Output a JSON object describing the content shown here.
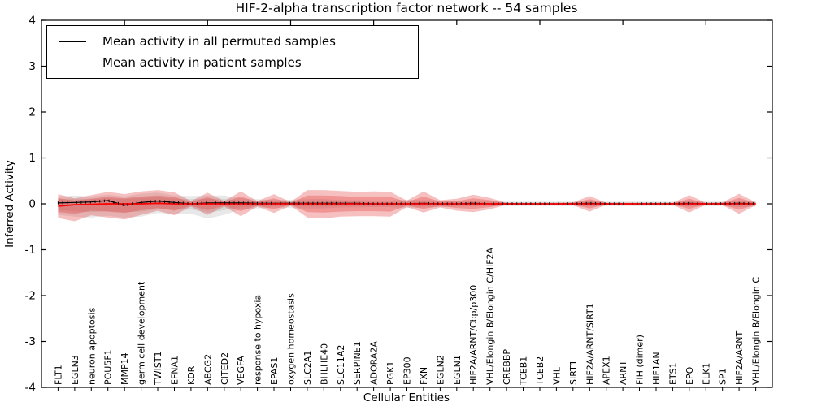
{
  "title": "HIF-2-alpha transcription factor network -- 54 samples",
  "legend": {
    "items": [
      {
        "label": "Mean activity in all permuted samples",
        "color": "#000000"
      },
      {
        "label": "Mean activity in patient samples",
        "color": "#ff0000"
      }
    ]
  },
  "axes": {
    "x_label": "Cellular Entities",
    "y_label": "Inferred Activity",
    "y_tick_labels": [
      "4",
      "3",
      "2",
      "1",
      "0",
      "-1",
      "-2",
      "-3",
      "-4"
    ],
    "y_tick_values": [
      4,
      3,
      2,
      1,
      0,
      -1,
      -2,
      -3,
      -4
    ]
  },
  "colors": {
    "permuted_line": "#000000",
    "patient_line": "#ff0000",
    "permuted_band": "#808080",
    "patient_band": "#e03030",
    "frame": "#000000"
  },
  "chart_data": {
    "type": "line",
    "title": "HIF-2-alpha transcription factor network -- 54 samples",
    "xlabel": "Cellular Entities",
    "ylabel": "Inferred Activity",
    "ylim": [
      -4,
      4
    ],
    "grid": false,
    "legend_position": "upper left",
    "categories": [
      "FLT1",
      "EGLN3",
      "neuron apoptosis",
      "POU5F1",
      "MMP14",
      "germ cell development",
      "TWIST1",
      "EFNA1",
      "KDR",
      "ABCG2",
      "CITED2",
      "VEGFA",
      "response to hypoxia",
      "EPAS1",
      "oxygen homeostasis",
      "SLC2A1",
      "BHLHE40",
      "SLC11A2",
      "SERPINE1",
      "ADORA2A",
      "PGK1",
      "EP300",
      "FXN",
      "EGLN2",
      "EGLN1",
      "HIF2A/ARNT/Cbp/p300",
      "VHL/Elongin B/Elongin C/HIF2A",
      "CREBBP",
      "TCEB1",
      "TCEB2",
      "VHL",
      "SIRT1",
      "HIF2A/ARNT/SIRT1",
      "APEX1",
      "ARNT",
      "FIH (dimer)",
      "HIF1AN",
      "ETS1",
      "EPO",
      "ELK1",
      "SP1",
      "HIF2A/ARNT",
      "VHL/Elongin B/Elongin C"
    ],
    "x_major_tick_indices": [
      4,
      9,
      14,
      19,
      24,
      29,
      34,
      39
    ],
    "series": [
      {
        "name": "Mean activity in all permuted samples",
        "color": "#000000",
        "values": [
          0.02,
          0.03,
          0.04,
          0.07,
          -0.03,
          0.03,
          0.06,
          0.03,
          0.0,
          0.02,
          0.02,
          0.02,
          0.01,
          0.01,
          0.01,
          0.01,
          0.01,
          0.01,
          0.01,
          0.0,
          0.0,
          0.0,
          0.01,
          0.0,
          0.0,
          0.01,
          0.0,
          0.0,
          0.0,
          0.0,
          0.0,
          0.0,
          0.01,
          0.0,
          0.0,
          0.0,
          0.0,
          0.0,
          0.01,
          0.0,
          0.0,
          0.01,
          0.0
        ]
      },
      {
        "name": "Mean activity in patient samples",
        "color": "#ff0000",
        "values": [
          -0.05,
          -0.02,
          -0.01,
          0,
          0,
          0,
          0.01,
          0,
          0,
          0,
          0,
          0,
          0,
          0,
          0,
          0,
          0,
          0,
          0,
          0,
          0,
          0,
          0,
          0,
          0,
          0,
          0,
          0,
          0,
          0,
          0,
          0,
          0,
          0,
          0,
          0,
          0,
          0,
          0,
          0,
          0,
          0,
          0
        ]
      }
    ],
    "bands": [
      {
        "name": "permuted-samples-band-outer",
        "color": "#808080",
        "opacity": 0.18,
        "upper": [
          0.16,
          0.18,
          0.16,
          0.2,
          0.16,
          0.22,
          0.24,
          0.18,
          0.17,
          0.18,
          0.18,
          0.12,
          0.1,
          0.08,
          0.09,
          0.1,
          0.1,
          0.08,
          0.08,
          0.07,
          0.07,
          0.09,
          0.08,
          0.07,
          0.06,
          0.06,
          0.05,
          0.05,
          0.05,
          0.05,
          0.05,
          0.05,
          0.06,
          0.05,
          0.05,
          0.05,
          0.05,
          0.05,
          0.06,
          0.05,
          0.05,
          0.07,
          0.06
        ],
        "lower": [
          -0.24,
          -0.28,
          -0.3,
          -0.26,
          -0.3,
          -0.28,
          -0.2,
          -0.22,
          -0.22,
          -0.32,
          -0.24,
          -0.12,
          -0.1,
          -0.08,
          -0.09,
          -0.1,
          -0.1,
          -0.08,
          -0.08,
          -0.07,
          -0.07,
          -0.09,
          -0.08,
          -0.07,
          -0.06,
          -0.06,
          -0.05,
          -0.05,
          -0.05,
          -0.05,
          -0.05,
          -0.05,
          -0.06,
          -0.05,
          -0.05,
          -0.05,
          -0.05,
          -0.05,
          -0.06,
          -0.05,
          -0.05,
          -0.07,
          -0.06
        ]
      },
      {
        "name": "permuted-samples-band-inner",
        "color": "#808080",
        "opacity": 0.18,
        "upper": [
          0.1,
          0.11,
          0.1,
          0.12,
          0.1,
          0.13,
          0.14,
          0.11,
          0.1,
          0.11,
          0.11,
          0.07,
          0.06,
          0.05,
          0.05,
          0.06,
          0.06,
          0.05,
          0.05,
          0.04,
          0.04,
          0.05,
          0.05,
          0.04,
          0.04,
          0.04,
          0.03,
          0.03,
          0.03,
          0.03,
          0.03,
          0.03,
          0.04,
          0.03,
          0.03,
          0.03,
          0.03,
          0.03,
          0.04,
          0.03,
          0.03,
          0.04,
          0.04
        ],
        "lower": [
          -0.14,
          -0.17,
          -0.18,
          -0.16,
          -0.18,
          -0.17,
          -0.12,
          -0.13,
          -0.13,
          -0.19,
          -0.14,
          -0.07,
          -0.06,
          -0.05,
          -0.05,
          -0.06,
          -0.06,
          -0.05,
          -0.05,
          -0.04,
          -0.04,
          -0.05,
          -0.05,
          -0.04,
          -0.04,
          -0.04,
          -0.03,
          -0.03,
          -0.03,
          -0.03,
          -0.03,
          -0.03,
          -0.04,
          -0.03,
          -0.03,
          -0.03,
          -0.03,
          -0.03,
          -0.04,
          -0.03,
          -0.03,
          -0.04,
          -0.04
        ]
      },
      {
        "name": "patient-samples-band-outer",
        "color": "#e03030",
        "opacity": 0.3,
        "upper": [
          0.21,
          0.12,
          0.19,
          0.26,
          0.21,
          0.27,
          0.3,
          0.25,
          0.06,
          0.24,
          0.06,
          0.27,
          0.06,
          0.21,
          0.04,
          0.3,
          0.3,
          0.28,
          0.26,
          0.27,
          0.26,
          0.07,
          0.27,
          0.08,
          0.11,
          0.2,
          0.13,
          0.02,
          0.02,
          0.02,
          0.02,
          0.03,
          0.17,
          0.02,
          0.02,
          0.02,
          0.02,
          0.02,
          0.19,
          0.02,
          0.03,
          0.22,
          0.03
        ],
        "lower": [
          -0.31,
          -0.38,
          -0.25,
          -0.3,
          -0.34,
          -0.24,
          -0.15,
          -0.25,
          -0.06,
          -0.24,
          -0.06,
          -0.27,
          -0.06,
          -0.2,
          -0.04,
          -0.3,
          -0.32,
          -0.28,
          -0.27,
          -0.27,
          -0.28,
          -0.07,
          -0.19,
          -0.08,
          -0.15,
          -0.18,
          -0.12,
          -0.02,
          -0.02,
          -0.02,
          -0.02,
          -0.03,
          -0.17,
          -0.02,
          -0.02,
          -0.02,
          -0.02,
          -0.02,
          -0.19,
          -0.02,
          -0.03,
          -0.22,
          -0.03
        ]
      },
      {
        "name": "patient-samples-band-inner",
        "color": "#e03030",
        "opacity": 0.3,
        "upper": [
          0.12,
          0.07,
          0.11,
          0.15,
          0.12,
          0.16,
          0.18,
          0.15,
          0.04,
          0.14,
          0.04,
          0.16,
          0.04,
          0.12,
          0.02,
          0.18,
          0.18,
          0.17,
          0.15,
          0.16,
          0.15,
          0.04,
          0.16,
          0.05,
          0.06,
          0.12,
          0.08,
          0.01,
          0.01,
          0.01,
          0.01,
          0.02,
          0.1,
          0.01,
          0.01,
          0.01,
          0.01,
          0.01,
          0.11,
          0.01,
          0.02,
          0.13,
          0.02
        ],
        "lower": [
          -0.18,
          -0.22,
          -0.15,
          -0.17,
          -0.2,
          -0.14,
          -0.09,
          -0.15,
          -0.04,
          -0.14,
          -0.04,
          -0.16,
          -0.04,
          -0.12,
          -0.02,
          -0.18,
          -0.19,
          -0.17,
          -0.16,
          -0.16,
          -0.17,
          -0.04,
          -0.11,
          -0.05,
          -0.09,
          -0.11,
          -0.07,
          -0.01,
          -0.01,
          -0.01,
          -0.01,
          -0.02,
          -0.1,
          -0.01,
          -0.01,
          -0.01,
          -0.01,
          -0.01,
          -0.11,
          -0.01,
          -0.02,
          -0.13,
          -0.02
        ]
      }
    ]
  }
}
